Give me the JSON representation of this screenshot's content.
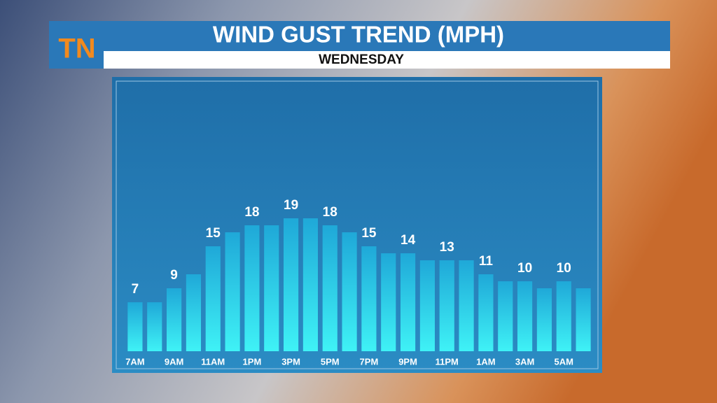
{
  "logo": "TN",
  "chart_data": {
    "type": "bar",
    "title": "WIND GUST TREND (MPH)",
    "subtitle": "WEDNESDAY",
    "categories": [
      "7AM",
      null,
      "9AM",
      null,
      "11AM",
      null,
      "1PM",
      null,
      "3PM",
      null,
      "5PM",
      null,
      "7PM",
      null,
      "9PM",
      null,
      "11PM",
      null,
      "1AM",
      null,
      "3AM",
      null,
      "5AM",
      null
    ],
    "values": [
      7,
      7,
      9,
      11,
      15,
      17,
      18,
      18,
      19,
      19,
      18,
      17,
      15,
      14,
      14,
      13,
      13,
      13,
      11,
      10,
      10,
      9,
      10,
      9
    ],
    "value_label_step": 2,
    "ylim": [
      0,
      38
    ],
    "color": "#2fd3ea"
  }
}
